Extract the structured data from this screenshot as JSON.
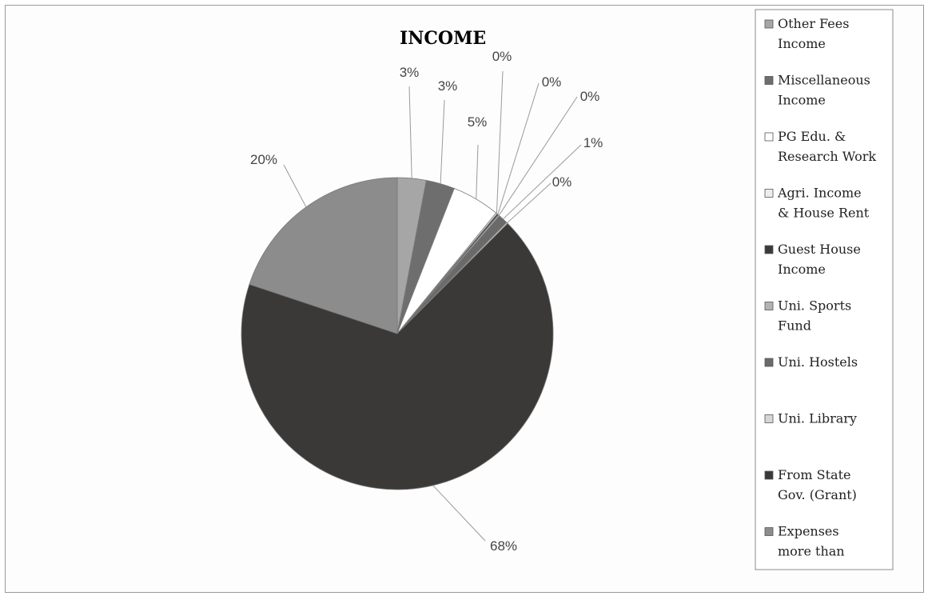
{
  "chart_data": {
    "type": "pie",
    "title": "INCOME",
    "slices": [
      {
        "name": "Other Fees Income",
        "value": 3,
        "label": "3%",
        "color": "#a6a6a6"
      },
      {
        "name": "Miscellaneous Income",
        "value": 3,
        "label": "3%",
        "color": "#6e6e6e"
      },
      {
        "name": "PG Edu. & Research Work",
        "value": 5,
        "label": "5%",
        "color": "#ffffff"
      },
      {
        "name": "Agri. Income & House Rent",
        "value": 0,
        "label": "0%",
        "color": "#ededed"
      },
      {
        "name": "Guest House Income",
        "value": 0,
        "label": "0%",
        "color": "#3a3a3a"
      },
      {
        "name": "Uni. Sports Fund",
        "value": 0,
        "label": "0%",
        "color": "#b3b3b3"
      },
      {
        "name": "Uni. Hostels",
        "value": 1,
        "label": "1%",
        "color": "#6a6a6a"
      },
      {
        "name": "Uni. Library",
        "value": 0,
        "label": "0%",
        "color": "#d6d6d6"
      },
      {
        "name": "From State Gov. (Grant)",
        "value": 68,
        "label": "68%",
        "color": "#3b3838"
      },
      {
        "name": "Expenses more than",
        "value": 20,
        "label": "20%",
        "color": "#8c8c8c"
      }
    ],
    "legend": {
      "position": "right",
      "entries": [
        {
          "lines": [
            "Other Fees",
            "Income"
          ],
          "color": "#a6a6a6"
        },
        {
          "lines": [
            "Miscellaneous",
            "Income"
          ],
          "color": "#6e6e6e"
        },
        {
          "lines": [
            "PG Edu. &",
            "Research Work"
          ],
          "color": "#ffffff"
        },
        {
          "lines": [
            "Agri. Income",
            "& House Rent"
          ],
          "color": "#ededed"
        },
        {
          "lines": [
            "Guest House",
            "Income"
          ],
          "color": "#3a3a3a"
        },
        {
          "lines": [
            "Uni. Sports",
            "Fund"
          ],
          "color": "#b3b3b3"
        },
        {
          "lines": [
            "Uni. Hostels"
          ],
          "color": "#6a6a6a"
        },
        {
          "lines": [
            "Uni. Library"
          ],
          "color": "#d6d6d6"
        },
        {
          "lines": [
            "From State",
            "Gov. (Grant)"
          ],
          "color": "#3b3838"
        },
        {
          "lines": [
            "Expenses",
            "more than"
          ],
          "color": "#8c8c8c"
        }
      ]
    }
  }
}
